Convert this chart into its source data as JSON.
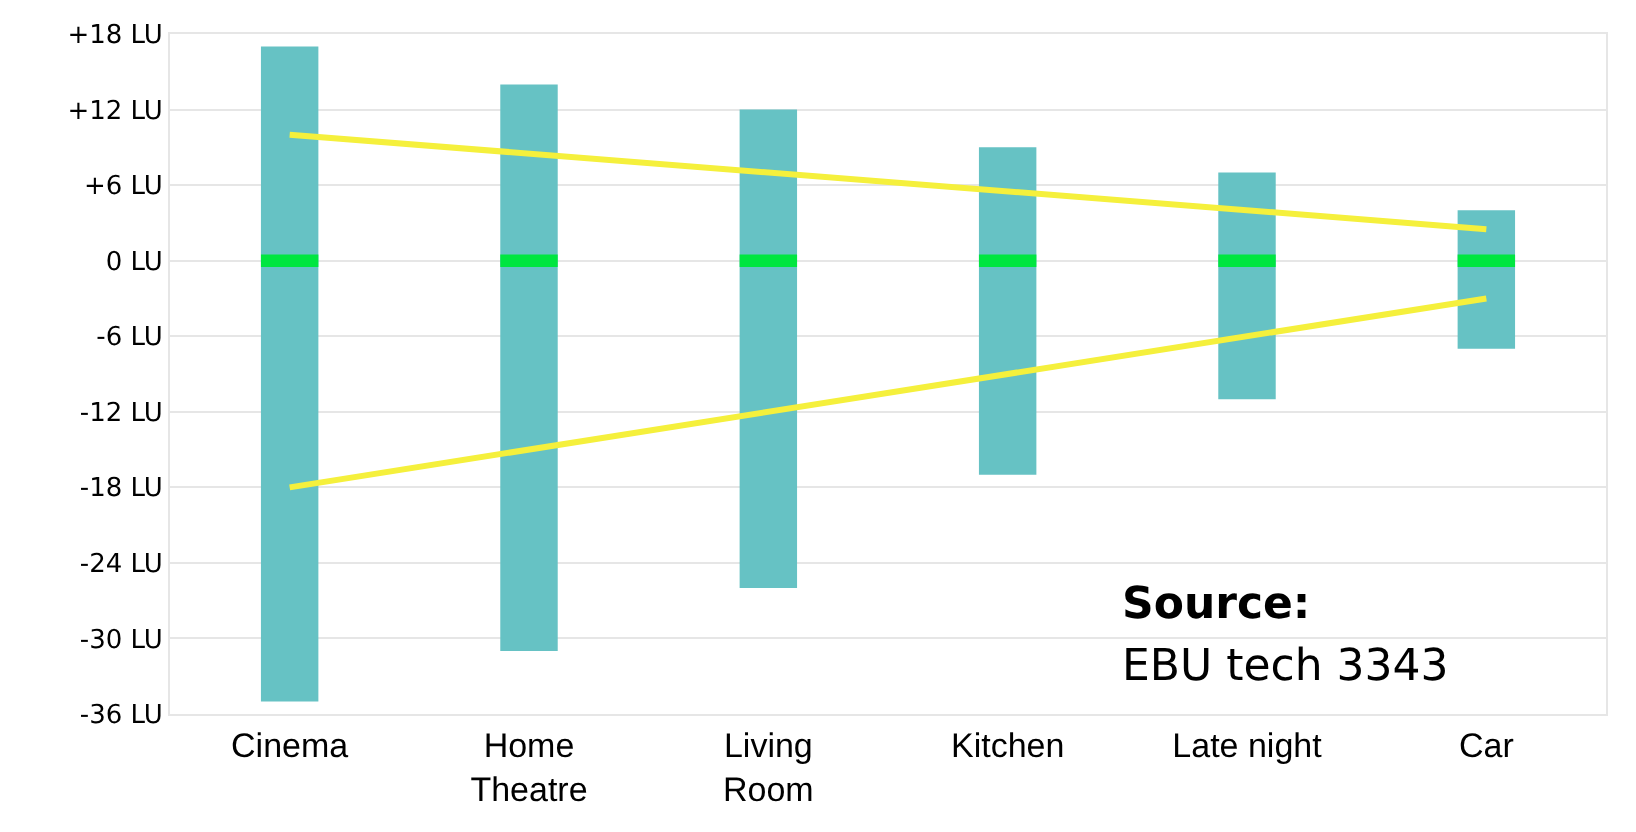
{
  "chart_data": {
    "type": "bar",
    "categories": [
      "Cinema",
      "Home\nTheatre",
      "Living\nRoom",
      "Kitchen",
      "Late night",
      "Car"
    ],
    "series": [
      {
        "color": "#66c2c4",
        "values": [
          52,
          45,
          38,
          26,
          18,
          11
        ],
        "base": [
          -35,
          -31,
          -26,
          -17,
          -11,
          -7
        ]
      },
      {
        "color": "#00e640",
        "values": [
          1,
          1,
          1,
          1,
          1,
          1
        ],
        "base": [
          -0.5,
          -0.5,
          -0.5,
          -0.5,
          -0.5,
          -0.5
        ]
      },
      {
        "type": "line",
        "color": "#f5f03c",
        "x": [
          "Cinema",
          "Car"
        ],
        "values": [
          10,
          2.5
        ]
      },
      {
        "type": "line",
        "color": "#f5f03c",
        "x": [
          "Cinema",
          "Car"
        ],
        "values": [
          -18,
          -3
        ]
      }
    ],
    "ylim": [
      -36,
      18
    ],
    "yticks": [
      {
        "value": 18,
        "label": "+18 LU"
      },
      {
        "value": 12,
        "label": "+12 LU"
      },
      {
        "value": 6,
        "label": "+6 LU"
      },
      {
        "value": 0,
        "label": "0 LU"
      },
      {
        "value": -6,
        "label": "-6 LU"
      },
      {
        "value": -12,
        "label": "-12 LU"
      },
      {
        "value": -18,
        "label": "-18 LU"
      },
      {
        "value": -24,
        "label": "-24 LU"
      },
      {
        "value": -30,
        "label": "-30 LU"
      },
      {
        "value": -36,
        "label": "-36 LU"
      }
    ],
    "annotations": [
      "Source:",
      "EBU tech 3343"
    ],
    "grid": "y"
  }
}
